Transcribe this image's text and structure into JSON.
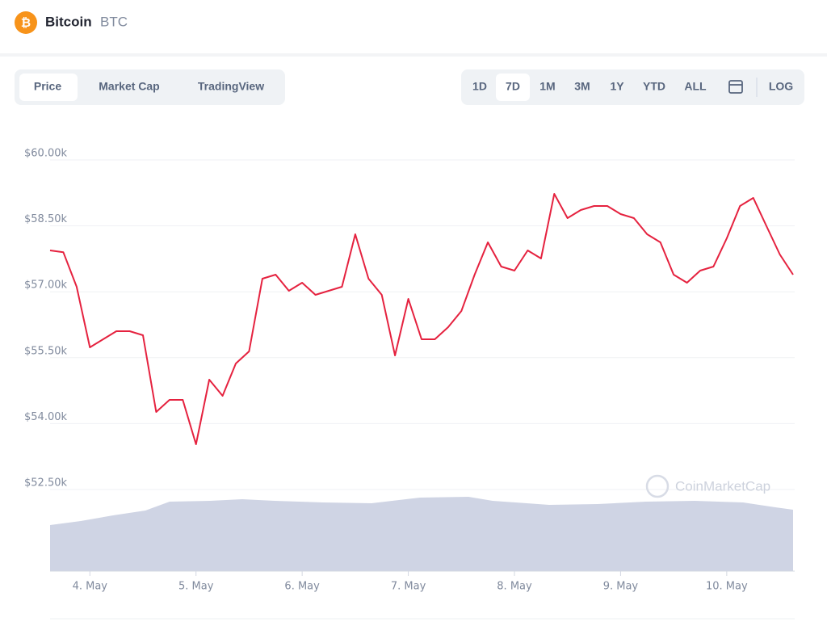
{
  "ui": {
    "coin_name": "Bitcoin",
    "coin_symbol": "BTC",
    "tabs": [
      "Price",
      "Market Cap",
      "TradingView"
    ],
    "ranges": [
      "1D",
      "7D",
      "1M",
      "3M",
      "1Y",
      "YTD",
      "ALL"
    ],
    "log": "LOG",
    "watermark": "CoinMarketCap"
  },
  "chart_data": {
    "type": "line",
    "color": "#e5223f",
    "grid": true,
    "values": [
      57941,
      57900,
      57114,
      55735,
      55919,
      56103,
      56103,
      56011,
      54265,
      54540,
      54540,
      53529,
      55000,
      54632,
      55368,
      55643,
      57298,
      57390,
      57022,
      57206,
      56930,
      57022,
      57114,
      58309,
      57298,
      56930,
      55551,
      56838,
      55919,
      55919,
      56195,
      56562,
      57390,
      58125,
      57574,
      57482,
      57941,
      57757,
      59228,
      58676,
      58860,
      58952,
      58952,
      58768,
      58676,
      58309,
      58125,
      57390,
      57206,
      57482,
      57574,
      58217,
      58952,
      59136,
      58493,
      57849,
      57390
    ],
    "xlim": [
      0,
      56
    ],
    "xticks": [
      {
        "value": 3,
        "label": "4. May"
      },
      {
        "value": 11,
        "label": "5. May"
      },
      {
        "value": 19,
        "label": "6. May"
      },
      {
        "value": 27,
        "label": "7. May"
      },
      {
        "value": 35,
        "label": "8. May"
      },
      {
        "value": 43,
        "label": "9. May"
      },
      {
        "value": 51,
        "label": "10. May"
      }
    ],
    "ylim": [
      52500,
      60250
    ],
    "yticks": [
      {
        "value": 52500,
        "label": "$52.50k"
      },
      {
        "value": 54000,
        "label": "$54.00k"
      },
      {
        "value": 55500,
        "label": "$55.50k"
      },
      {
        "value": 57000,
        "label": "$57.00k"
      },
      {
        "value": 58500,
        "label": "$58.50k"
      },
      {
        "value": 60000,
        "label": "$60.00k"
      }
    ]
  }
}
